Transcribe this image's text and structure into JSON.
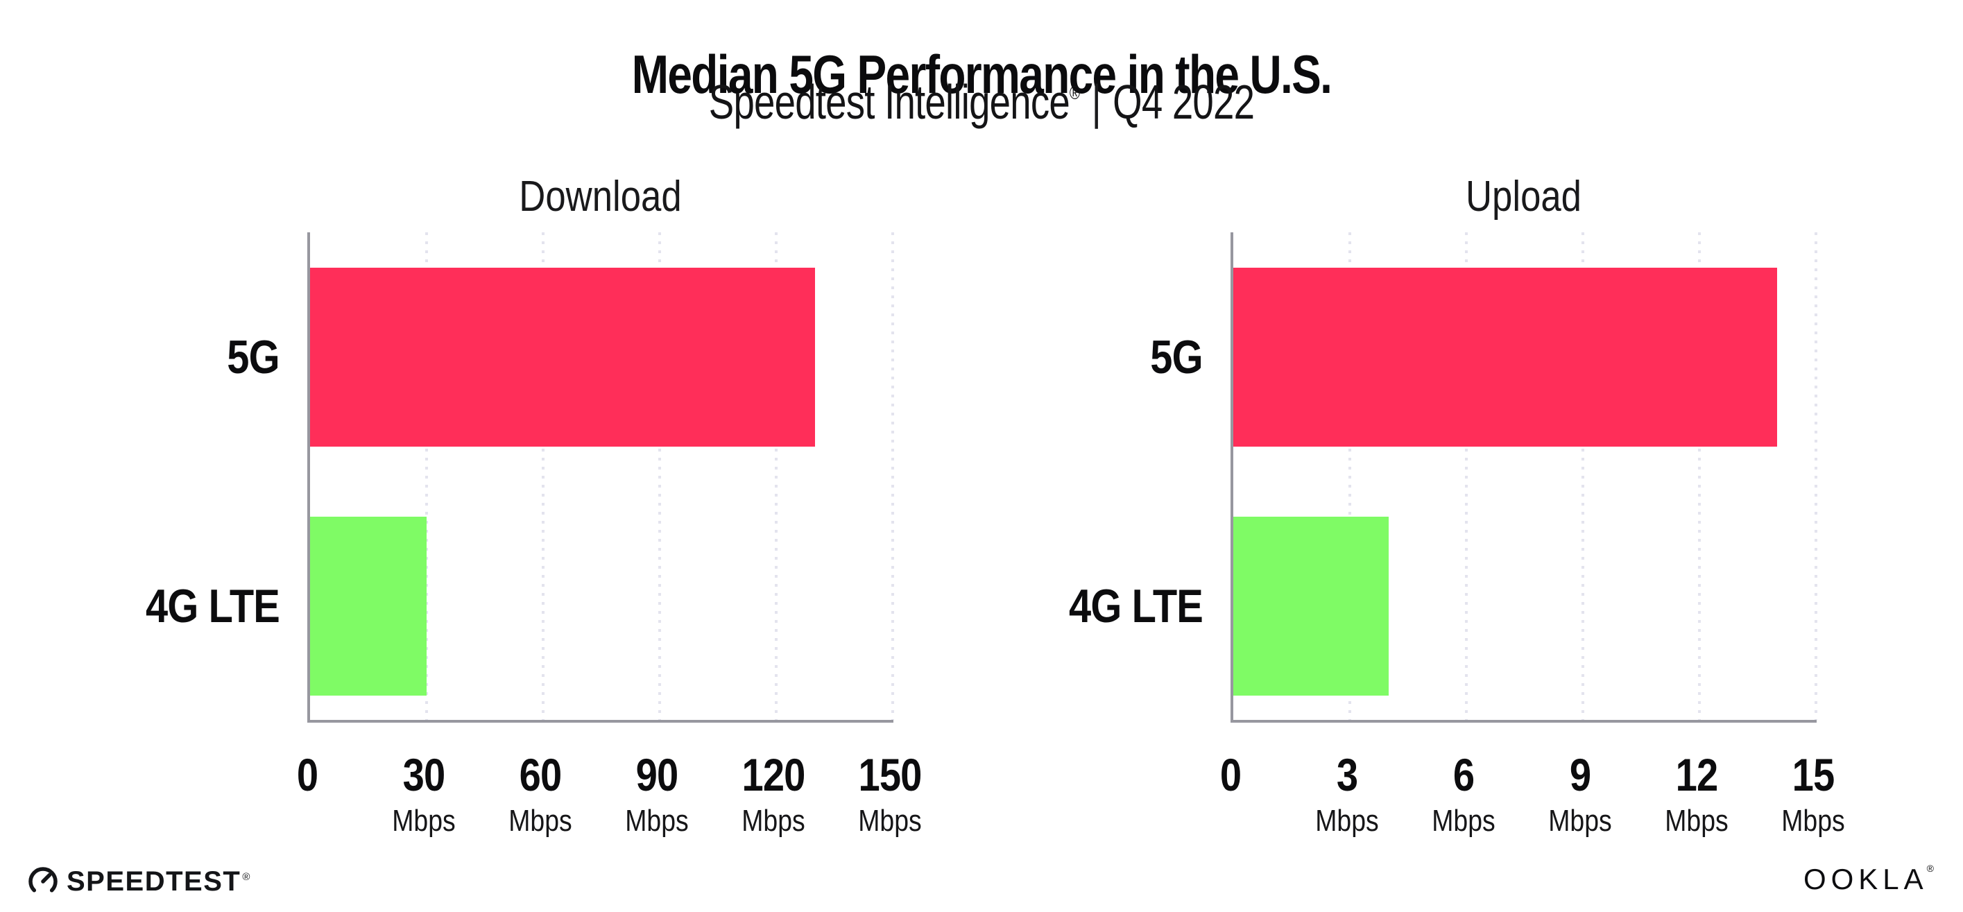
{
  "header": {
    "title": "Median 5G Performance in the U.S.",
    "subtitle_brand": "Speedtest Intelligence",
    "subtitle_reg": "®",
    "subtitle_sep": "|",
    "subtitle_period": "Q4 2022"
  },
  "footer": {
    "speedtest_logo_text": "SPEEDTEST",
    "speedtest_reg": "®",
    "ookla_logo_text": "OOKLA",
    "ookla_reg": "®"
  },
  "colors": {
    "bar_5g": "#ff2e59",
    "bar_4g_lte": "#7ffb65",
    "axis": "#97979f",
    "gridline": "#e3e3ee",
    "text": "#0c0c0e"
  },
  "chart_data": [
    {
      "type": "bar",
      "orientation": "horizontal",
      "title": "Download",
      "categories": [
        "5G",
        "4G LTE"
      ],
      "values": [
        130,
        30
      ],
      "unit": "Mbps",
      "xlim": [
        0,
        150
      ],
      "xticks": [
        0,
        30,
        60,
        90,
        120,
        150
      ],
      "tick_unit_label": "Mbps",
      "bar_colors": [
        "#ff2e59",
        "#7ffb65"
      ],
      "grid": "vertical-dotted",
      "legend": "none"
    },
    {
      "type": "bar",
      "orientation": "horizontal",
      "title": "Upload",
      "categories": [
        "5G",
        "4G LTE"
      ],
      "values": [
        14,
        4
      ],
      "unit": "Mbps",
      "xlim": [
        0,
        15
      ],
      "xticks": [
        0,
        3,
        6,
        9,
        12,
        15
      ],
      "tick_unit_label": "Mbps",
      "bar_colors": [
        "#ff2e59",
        "#7ffb65"
      ],
      "grid": "vertical-dotted",
      "legend": "none"
    }
  ]
}
